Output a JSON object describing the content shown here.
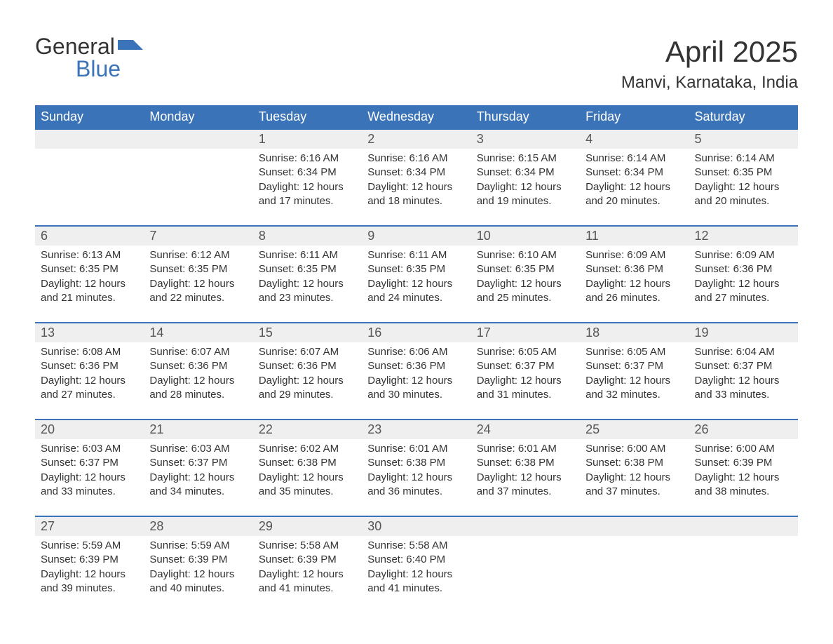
{
  "logo": {
    "line1": "General",
    "line2": "Blue",
    "mark_color": "#3b73b9",
    "text_color_main": "#333333",
    "text_color_accent": "#3b73b9"
  },
  "title": "April 2025",
  "location": "Manvi, Karnataka, India",
  "colors": {
    "header_bg": "#3b73b9",
    "header_fg": "#ffffff",
    "daynum_bg": "#efefef",
    "daynum_fg": "#555555",
    "body_fg": "#333333",
    "week_divider": "#3b73b9",
    "page_bg": "#ffffff"
  },
  "typography": {
    "title_fontsize": 42,
    "location_fontsize": 24,
    "dow_fontsize": 18,
    "daynum_fontsize": 18,
    "detail_fontsize": 15,
    "font_family": "Arial"
  },
  "days_of_week": [
    "Sunday",
    "Monday",
    "Tuesday",
    "Wednesday",
    "Thursday",
    "Friday",
    "Saturday"
  ],
  "weeks": [
    [
      {
        "day": "",
        "sunrise": "",
        "sunset": "",
        "daylight": ""
      },
      {
        "day": "",
        "sunrise": "",
        "sunset": "",
        "daylight": ""
      },
      {
        "day": "1",
        "sunrise": "Sunrise: 6:16 AM",
        "sunset": "Sunset: 6:34 PM",
        "daylight": "Daylight: 12 hours and 17 minutes."
      },
      {
        "day": "2",
        "sunrise": "Sunrise: 6:16 AM",
        "sunset": "Sunset: 6:34 PM",
        "daylight": "Daylight: 12 hours and 18 minutes."
      },
      {
        "day": "3",
        "sunrise": "Sunrise: 6:15 AM",
        "sunset": "Sunset: 6:34 PM",
        "daylight": "Daylight: 12 hours and 19 minutes."
      },
      {
        "day": "4",
        "sunrise": "Sunrise: 6:14 AM",
        "sunset": "Sunset: 6:34 PM",
        "daylight": "Daylight: 12 hours and 20 minutes."
      },
      {
        "day": "5",
        "sunrise": "Sunrise: 6:14 AM",
        "sunset": "Sunset: 6:35 PM",
        "daylight": "Daylight: 12 hours and 20 minutes."
      }
    ],
    [
      {
        "day": "6",
        "sunrise": "Sunrise: 6:13 AM",
        "sunset": "Sunset: 6:35 PM",
        "daylight": "Daylight: 12 hours and 21 minutes."
      },
      {
        "day": "7",
        "sunrise": "Sunrise: 6:12 AM",
        "sunset": "Sunset: 6:35 PM",
        "daylight": "Daylight: 12 hours and 22 minutes."
      },
      {
        "day": "8",
        "sunrise": "Sunrise: 6:11 AM",
        "sunset": "Sunset: 6:35 PM",
        "daylight": "Daylight: 12 hours and 23 minutes."
      },
      {
        "day": "9",
        "sunrise": "Sunrise: 6:11 AM",
        "sunset": "Sunset: 6:35 PM",
        "daylight": "Daylight: 12 hours and 24 minutes."
      },
      {
        "day": "10",
        "sunrise": "Sunrise: 6:10 AM",
        "sunset": "Sunset: 6:35 PM",
        "daylight": "Daylight: 12 hours and 25 minutes."
      },
      {
        "day": "11",
        "sunrise": "Sunrise: 6:09 AM",
        "sunset": "Sunset: 6:36 PM",
        "daylight": "Daylight: 12 hours and 26 minutes."
      },
      {
        "day": "12",
        "sunrise": "Sunrise: 6:09 AM",
        "sunset": "Sunset: 6:36 PM",
        "daylight": "Daylight: 12 hours and 27 minutes."
      }
    ],
    [
      {
        "day": "13",
        "sunrise": "Sunrise: 6:08 AM",
        "sunset": "Sunset: 6:36 PM",
        "daylight": "Daylight: 12 hours and 27 minutes."
      },
      {
        "day": "14",
        "sunrise": "Sunrise: 6:07 AM",
        "sunset": "Sunset: 6:36 PM",
        "daylight": "Daylight: 12 hours and 28 minutes."
      },
      {
        "day": "15",
        "sunrise": "Sunrise: 6:07 AM",
        "sunset": "Sunset: 6:36 PM",
        "daylight": "Daylight: 12 hours and 29 minutes."
      },
      {
        "day": "16",
        "sunrise": "Sunrise: 6:06 AM",
        "sunset": "Sunset: 6:36 PM",
        "daylight": "Daylight: 12 hours and 30 minutes."
      },
      {
        "day": "17",
        "sunrise": "Sunrise: 6:05 AM",
        "sunset": "Sunset: 6:37 PM",
        "daylight": "Daylight: 12 hours and 31 minutes."
      },
      {
        "day": "18",
        "sunrise": "Sunrise: 6:05 AM",
        "sunset": "Sunset: 6:37 PM",
        "daylight": "Daylight: 12 hours and 32 minutes."
      },
      {
        "day": "19",
        "sunrise": "Sunrise: 6:04 AM",
        "sunset": "Sunset: 6:37 PM",
        "daylight": "Daylight: 12 hours and 33 minutes."
      }
    ],
    [
      {
        "day": "20",
        "sunrise": "Sunrise: 6:03 AM",
        "sunset": "Sunset: 6:37 PM",
        "daylight": "Daylight: 12 hours and 33 minutes."
      },
      {
        "day": "21",
        "sunrise": "Sunrise: 6:03 AM",
        "sunset": "Sunset: 6:37 PM",
        "daylight": "Daylight: 12 hours and 34 minutes."
      },
      {
        "day": "22",
        "sunrise": "Sunrise: 6:02 AM",
        "sunset": "Sunset: 6:38 PM",
        "daylight": "Daylight: 12 hours and 35 minutes."
      },
      {
        "day": "23",
        "sunrise": "Sunrise: 6:01 AM",
        "sunset": "Sunset: 6:38 PM",
        "daylight": "Daylight: 12 hours and 36 minutes."
      },
      {
        "day": "24",
        "sunrise": "Sunrise: 6:01 AM",
        "sunset": "Sunset: 6:38 PM",
        "daylight": "Daylight: 12 hours and 37 minutes."
      },
      {
        "day": "25",
        "sunrise": "Sunrise: 6:00 AM",
        "sunset": "Sunset: 6:38 PM",
        "daylight": "Daylight: 12 hours and 37 minutes."
      },
      {
        "day": "26",
        "sunrise": "Sunrise: 6:00 AM",
        "sunset": "Sunset: 6:39 PM",
        "daylight": "Daylight: 12 hours and 38 minutes."
      }
    ],
    [
      {
        "day": "27",
        "sunrise": "Sunrise: 5:59 AM",
        "sunset": "Sunset: 6:39 PM",
        "daylight": "Daylight: 12 hours and 39 minutes."
      },
      {
        "day": "28",
        "sunrise": "Sunrise: 5:59 AM",
        "sunset": "Sunset: 6:39 PM",
        "daylight": "Daylight: 12 hours and 40 minutes."
      },
      {
        "day": "29",
        "sunrise": "Sunrise: 5:58 AM",
        "sunset": "Sunset: 6:39 PM",
        "daylight": "Daylight: 12 hours and 41 minutes."
      },
      {
        "day": "30",
        "sunrise": "Sunrise: 5:58 AM",
        "sunset": "Sunset: 6:40 PM",
        "daylight": "Daylight: 12 hours and 41 minutes."
      },
      {
        "day": "",
        "sunrise": "",
        "sunset": "",
        "daylight": ""
      },
      {
        "day": "",
        "sunrise": "",
        "sunset": "",
        "daylight": ""
      },
      {
        "day": "",
        "sunrise": "",
        "sunset": "",
        "daylight": ""
      }
    ]
  ]
}
